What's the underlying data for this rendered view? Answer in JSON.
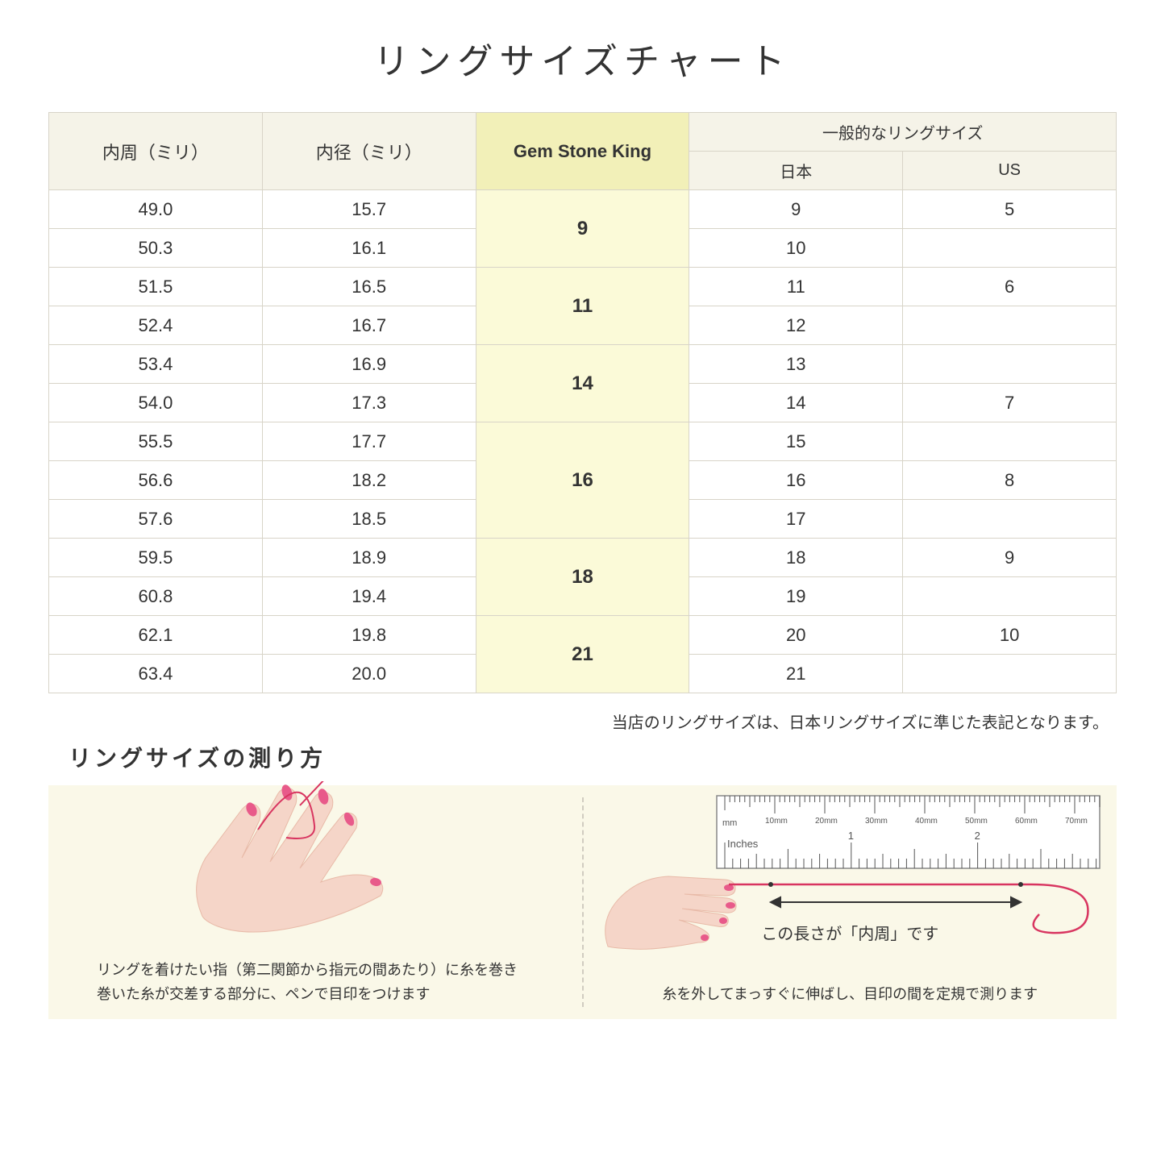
{
  "title": "リングサイズチャート",
  "headers": {
    "circumference": "内周（ミリ）",
    "diameter": "内径（ミリ）",
    "gsk": "Gem Stone King",
    "general": "一般的なリングサイズ",
    "japan": "日本",
    "us": "US"
  },
  "rows": [
    {
      "circ": "49.0",
      "dia": "15.7",
      "gsk": "9",
      "gsk_span": 2,
      "jp": "9",
      "us": "5"
    },
    {
      "circ": "50.3",
      "dia": "16.1",
      "jp": "10",
      "us": ""
    },
    {
      "circ": "51.5",
      "dia": "16.5",
      "gsk": "11",
      "gsk_span": 2,
      "jp": "11",
      "us": "6"
    },
    {
      "circ": "52.4",
      "dia": "16.7",
      "jp": "12",
      "us": ""
    },
    {
      "circ": "53.4",
      "dia": "16.9",
      "gsk": "14",
      "gsk_span": 2,
      "jp": "13",
      "us": ""
    },
    {
      "circ": "54.0",
      "dia": "17.3",
      "jp": "14",
      "us": "7"
    },
    {
      "circ": "55.5",
      "dia": "17.7",
      "gsk": "16",
      "gsk_span": 3,
      "jp": "15",
      "us": ""
    },
    {
      "circ": "56.6",
      "dia": "18.2",
      "jp": "16",
      "us": "8"
    },
    {
      "circ": "57.6",
      "dia": "18.5",
      "jp": "17",
      "us": ""
    },
    {
      "circ": "59.5",
      "dia": "18.9",
      "gsk": "18",
      "gsk_span": 2,
      "jp": "18",
      "us": "9"
    },
    {
      "circ": "60.8",
      "dia": "19.4",
      "jp": "19",
      "us": ""
    },
    {
      "circ": "62.1",
      "dia": "19.8",
      "gsk": "21",
      "gsk_span": 2,
      "jp": "20",
      "us": "10"
    },
    {
      "circ": "63.4",
      "dia": "20.0",
      "jp": "21",
      "us": ""
    }
  ],
  "note": "当店のリングサイズは、日本リングサイズに準じた表記となります。",
  "measure_title": "リングサイズの測り方",
  "left_instruction": "リングを着けたい指（第二関節から指元の間あたり）に糸を巻き\n巻いた糸が交差する部分に、ペンで目印をつけます",
  "right_instruction": "糸を外してまっすぐに伸ばし、目印の間を定規で測ります",
  "right_caption": "この長さが「内周」です",
  "ruler": {
    "mm_label": "mm",
    "inches_label": "Inches",
    "mm_marks": [
      "10mm",
      "20mm",
      "30mm",
      "40mm",
      "50mm",
      "60mm",
      "70mm"
    ],
    "inch_marks": [
      "1",
      "2"
    ]
  },
  "colors": {
    "header_bg": "#f5f3e8",
    "gsk_header_bg": "#f2f0b8",
    "gsk_cell_bg": "#fbfad8",
    "border": "#d8d4c8",
    "diagram_bg": "#faf8e8",
    "skin": "#f5d5c8",
    "skin_dark": "#e8baa8",
    "nail": "#e85a8a",
    "thread": "#d83560",
    "ruler_border": "#888888"
  }
}
